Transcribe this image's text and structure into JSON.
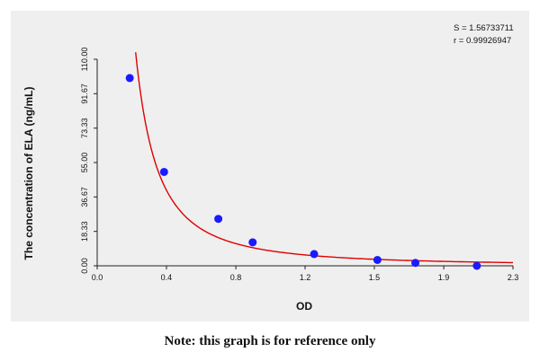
{
  "chart_data": {
    "type": "scatter",
    "title": "",
    "xlabel": "OD",
    "ylabel": "The concentration of ELA (ng/mL)",
    "xlim": [
      0,
      2.3
    ],
    "ylim": [
      0,
      110
    ],
    "x_ticks": [
      "0.0",
      "0.4",
      "0.8",
      "1.2",
      "1.5",
      "1.9",
      "2.3"
    ],
    "x_tick_values": [
      0.0,
      0.383,
      0.767,
      1.15,
      1.533,
      1.917,
      2.3
    ],
    "y_ticks": [
      "0.00",
      "18.33",
      "36.67",
      "55.00",
      "73.33",
      "91.67",
      "110.00"
    ],
    "y_tick_values": [
      0,
      18.33,
      36.67,
      55.0,
      73.33,
      91.67,
      110.0
    ],
    "grid": false,
    "stats": [
      "S = 1.56733711",
      "r = 0.99926947"
    ],
    "series": [
      {
        "points": [
          {
            "x": 0.18,
            "y": 100
          },
          {
            "x": 0.37,
            "y": 50
          },
          {
            "x": 0.67,
            "y": 25
          },
          {
            "x": 0.86,
            "y": 12.5
          },
          {
            "x": 1.2,
            "y": 6.25
          },
          {
            "x": 1.55,
            "y": 3.12
          },
          {
            "x": 1.76,
            "y": 1.56
          },
          {
            "x": 2.1,
            "y": 0
          }
        ],
        "marker_color": "#1a1aff",
        "curve_color": "#e00000"
      }
    ]
  },
  "note": "Note: this graph is for reference only"
}
